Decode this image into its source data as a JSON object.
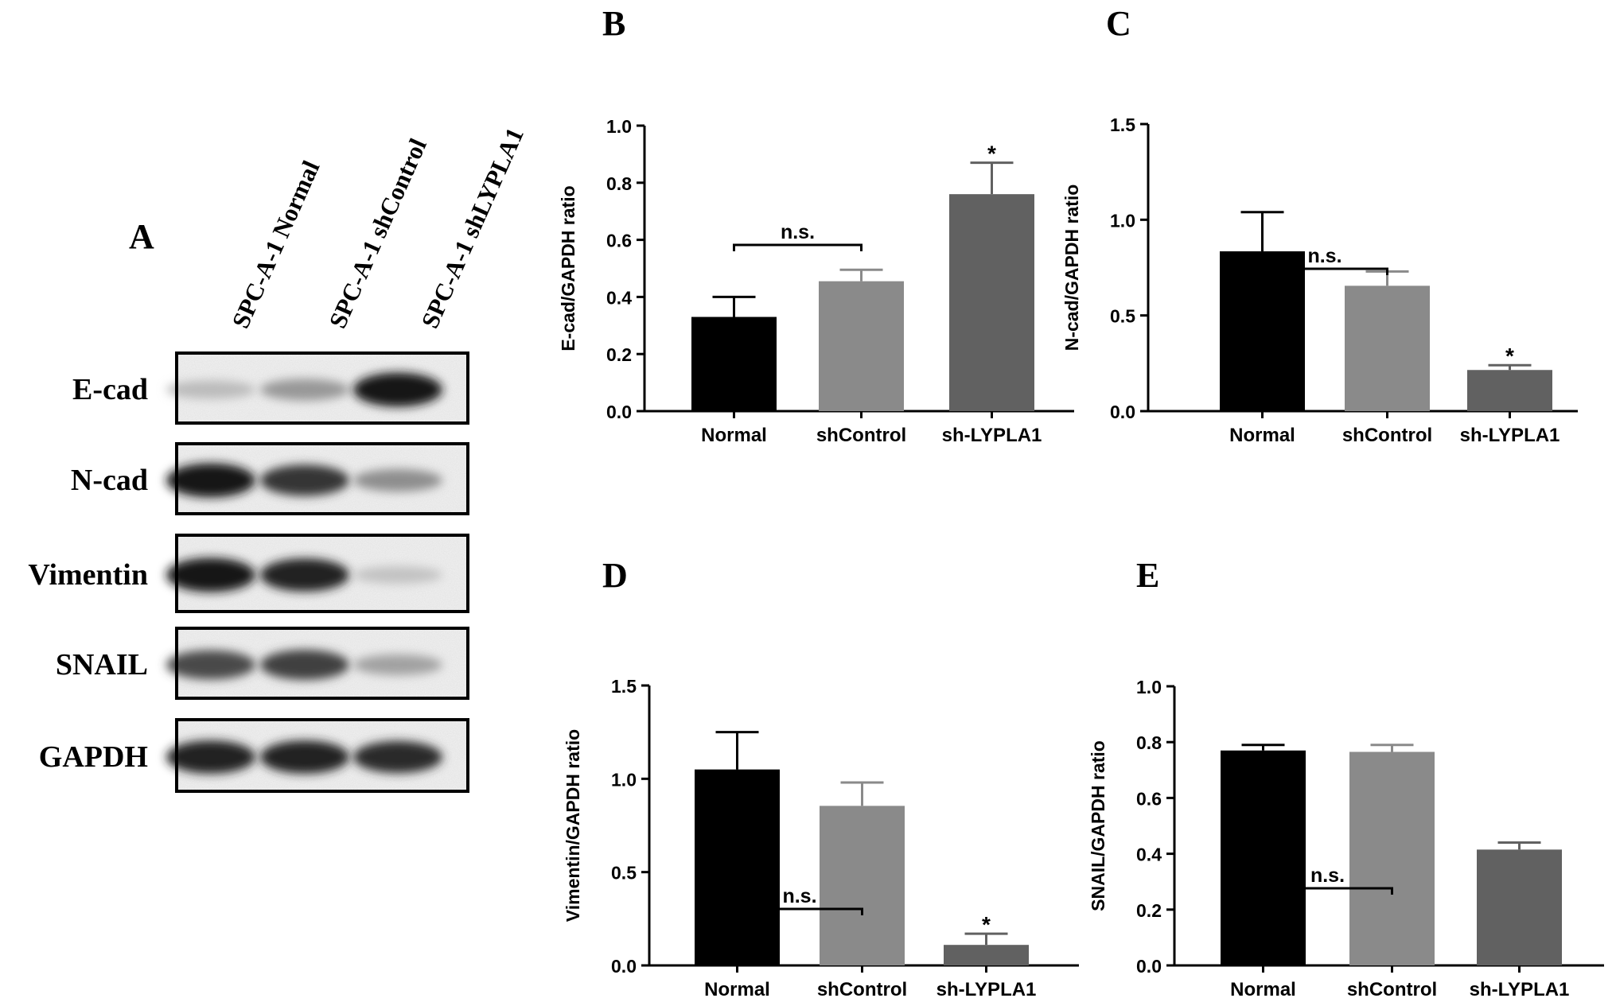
{
  "panel_a": {
    "letter": "A",
    "lanes": [
      "SPC-A-1 Normal",
      "SPC-A-1 shControl",
      "SPC-A-1 shLYPLA1"
    ],
    "blots": [
      {
        "label": "E-cad",
        "intensity": [
          0.12,
          0.3,
          0.95
        ]
      },
      {
        "label": "N-cad",
        "intensity": [
          0.95,
          0.8,
          0.35
        ]
      },
      {
        "label": "Vimentin",
        "intensity": [
          0.95,
          0.9,
          0.08
        ]
      },
      {
        "label": "SNAIL",
        "intensity": [
          0.7,
          0.75,
          0.25
        ]
      },
      {
        "label": "GAPDH",
        "intensity": [
          0.9,
          0.9,
          0.85
        ]
      }
    ]
  },
  "colors": {
    "normal": "#000000",
    "shcontrol": "#8a8a8a",
    "sh_lypla1": "#616161"
  },
  "chart_data": [
    {
      "panel": "B",
      "type": "bar",
      "categories": [
        "Normal",
        "shControl",
        "sh-LYPLA1"
      ],
      "values": [
        0.33,
        0.455,
        0.76
      ],
      "errors": [
        0.07,
        0.04,
        0.11
      ],
      "ylabel": "E-cad/GAPDH ratio",
      "ylim": [
        0,
        1.0
      ],
      "yticks": [
        "0.0",
        "0.2",
        "0.4",
        "0.6",
        "0.8",
        "1.0"
      ],
      "bracket": {
        "from": 0,
        "to": 1,
        "label": "n.s."
      },
      "stars": [
        {
          "index": 2,
          "label": "*"
        }
      ]
    },
    {
      "panel": "C",
      "type": "bar",
      "categories": [
        "Normal",
        "shControl",
        "sh-LYPLA1"
      ],
      "values": [
        0.835,
        0.655,
        0.215
      ],
      "errors": [
        0.205,
        0.075,
        0.025
      ],
      "ylabel": "N-cad/GAPDH ratio",
      "ylim": [
        0,
        1.5
      ],
      "yticks": [
        "0.0",
        "0.5",
        "1.0",
        "1.5"
      ],
      "bracket": {
        "from": 0,
        "to": 1,
        "label": "n.s."
      },
      "stars": [
        {
          "index": 2,
          "label": "*"
        }
      ]
    },
    {
      "panel": "D",
      "type": "bar",
      "categories": [
        "Normal",
        "shControl",
        "sh-LYPLA1"
      ],
      "values": [
        1.05,
        0.855,
        0.11
      ],
      "errors": [
        0.2,
        0.125,
        0.06
      ],
      "ylabel": "Vimentin/GAPDH ratio",
      "ylim": [
        0,
        1.5
      ],
      "yticks": [
        "0.0",
        "0.5",
        "1.0",
        "1.5"
      ],
      "bracket": {
        "from": 0,
        "to": 1,
        "label": "n.s."
      },
      "stars": [
        {
          "index": 2,
          "label": "*"
        }
      ]
    },
    {
      "panel": "E",
      "type": "bar",
      "categories": [
        "Normal",
        "shControl",
        "sh-LYPLA1"
      ],
      "values": [
        0.77,
        0.765,
        0.415
      ],
      "errors": [
        0.02,
        0.025,
        0.025
      ],
      "ylabel": "SNAIL/GAPDH ratio",
      "ylim": [
        0,
        1.0
      ],
      "yticks": [
        "0.0",
        "0.2",
        "0.4",
        "0.6",
        "0.8",
        "1.0"
      ],
      "bracket": {
        "from": 0,
        "to": 1,
        "label": "n.s."
      },
      "stars": []
    }
  ]
}
